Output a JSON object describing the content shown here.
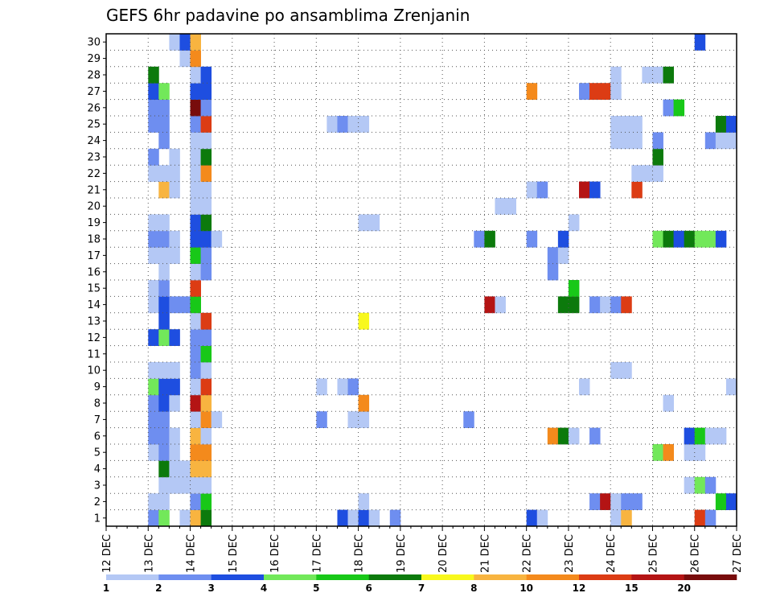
{
  "chart_data": {
    "type": "heatmap",
    "title": "GEFS 6hr padavine po ansamblima Zrenjanin",
    "xlabel": "",
    "ylabel": "",
    "x_tick_labels": [
      "12 DEC",
      "13 DEC",
      "14 DEC",
      "15 DEC",
      "16 DEC",
      "17 DEC",
      "18 DEC",
      "19 DEC",
      "20 DEC",
      "21 DEC",
      "22 DEC",
      "23 DEC",
      "24 DEC",
      "25 DEC",
      "26 DEC",
      "27 DEC"
    ],
    "y_tick_labels": [
      "1",
      "2",
      "3",
      "4",
      "5",
      "6",
      "7",
      "8",
      "9",
      "10",
      "11",
      "12",
      "13",
      "14",
      "15",
      "16",
      "17",
      "18",
      "19",
      "20",
      "21",
      "22",
      "23",
      "24",
      "25",
      "26",
      "27",
      "28",
      "29",
      "30"
    ],
    "x_unit_note": "x = days after 12 DEC 00Z, 6-hour steps",
    "xlim": [
      0,
      15
    ],
    "ylim": [
      0,
      30
    ],
    "grid": true,
    "legend_placement": "bottom",
    "legend": {
      "labels": [
        "1",
        "2",
        "3",
        "4",
        "5",
        "6",
        "7",
        "8",
        "10",
        "12",
        "15",
        "20"
      ],
      "colors": [
        "#b4c8f5",
        "#6e8ef0",
        "#1e4ee0",
        "#72e85a",
        "#18c818",
        "#0c7a0c",
        "#f8f81c",
        "#f8b440",
        "#f48a1c",
        "#dc3c14",
        "#b41414",
        "#780c0c"
      ]
    },
    "cells": [
      [
        1.0,
        1,
        2
      ],
      [
        1.0,
        2,
        1
      ],
      [
        1.0,
        5,
        1
      ],
      [
        1.0,
        6,
        2
      ],
      [
        1.0,
        7,
        2
      ],
      [
        1.0,
        8,
        2
      ],
      [
        1.0,
        9,
        4
      ],
      [
        1.0,
        10,
        1
      ],
      [
        1.0,
        12,
        3
      ],
      [
        1.0,
        14,
        1
      ],
      [
        1.0,
        15,
        1
      ],
      [
        1.0,
        17,
        1
      ],
      [
        1.0,
        18,
        2
      ],
      [
        1.0,
        19,
        1
      ],
      [
        1.0,
        22,
        1
      ],
      [
        1.0,
        23,
        2
      ],
      [
        1.0,
        25,
        2
      ],
      [
        1.0,
        26,
        2
      ],
      [
        1.0,
        27,
        3
      ],
      [
        1.0,
        28,
        6
      ],
      [
        1.25,
        1,
        4
      ],
      [
        1.25,
        2,
        1
      ],
      [
        1.25,
        3,
        1
      ],
      [
        1.25,
        4,
        6
      ],
      [
        1.25,
        5,
        2
      ],
      [
        1.25,
        6,
        2
      ],
      [
        1.25,
        7,
        2
      ],
      [
        1.25,
        8,
        3
      ],
      [
        1.25,
        9,
        3
      ],
      [
        1.25,
        10,
        1
      ],
      [
        1.25,
        12,
        4
      ],
      [
        1.25,
        13,
        3
      ],
      [
        1.25,
        14,
        3
      ],
      [
        1.25,
        15,
        2
      ],
      [
        1.25,
        16,
        1
      ],
      [
        1.25,
        17,
        1
      ],
      [
        1.25,
        18,
        2
      ],
      [
        1.25,
        19,
        1
      ],
      [
        1.25,
        21,
        8
      ],
      [
        1.25,
        22,
        1
      ],
      [
        1.25,
        24,
        2
      ],
      [
        1.25,
        25,
        2
      ],
      [
        1.25,
        26,
        2
      ],
      [
        1.25,
        27,
        4
      ],
      [
        1.5,
        3,
        1
      ],
      [
        1.5,
        4,
        1
      ],
      [
        1.5,
        5,
        1
      ],
      [
        1.5,
        6,
        1
      ],
      [
        1.5,
        8,
        1
      ],
      [
        1.5,
        9,
        3
      ],
      [
        1.5,
        10,
        1
      ],
      [
        1.5,
        12,
        3
      ],
      [
        1.5,
        14,
        2
      ],
      [
        1.5,
        17,
        1
      ],
      [
        1.5,
        18,
        1
      ],
      [
        1.5,
        21,
        1
      ],
      [
        1.5,
        22,
        1
      ],
      [
        1.5,
        23,
        1
      ],
      [
        1.5,
        30,
        1
      ],
      [
        1.75,
        1,
        1
      ],
      [
        1.75,
        3,
        1
      ],
      [
        1.75,
        4,
        1
      ],
      [
        1.75,
        14,
        2
      ],
      [
        1.75,
        29,
        1
      ],
      [
        1.75,
        30,
        3
      ],
      [
        2.0,
        1,
        8
      ],
      [
        2.0,
        2,
        2
      ],
      [
        2.0,
        3,
        1
      ],
      [
        2.0,
        4,
        8
      ],
      [
        2.0,
        5,
        9
      ],
      [
        2.0,
        6,
        8
      ],
      [
        2.0,
        7,
        1
      ],
      [
        2.0,
        8,
        11
      ],
      [
        2.0,
        9,
        1
      ],
      [
        2.0,
        10,
        2
      ],
      [
        2.0,
        11,
        2
      ],
      [
        2.0,
        12,
        2
      ],
      [
        2.0,
        13,
        1
      ],
      [
        2.0,
        14,
        5
      ],
      [
        2.0,
        15,
        10
      ],
      [
        2.0,
        16,
        1
      ],
      [
        2.0,
        17,
        5
      ],
      [
        2.0,
        18,
        3
      ],
      [
        2.0,
        19,
        3
      ],
      [
        2.0,
        20,
        1
      ],
      [
        2.0,
        21,
        1
      ],
      [
        2.0,
        22,
        1
      ],
      [
        2.0,
        23,
        1
      ],
      [
        2.0,
        24,
        1
      ],
      [
        2.0,
        25,
        2
      ],
      [
        2.0,
        26,
        12
      ],
      [
        2.0,
        27,
        3
      ],
      [
        2.0,
        28,
        1
      ],
      [
        2.0,
        29,
        9
      ],
      [
        2.0,
        30,
        8
      ],
      [
        2.25,
        1,
        6
      ],
      [
        2.25,
        2,
        5
      ],
      [
        2.25,
        3,
        1
      ],
      [
        2.25,
        4,
        8
      ],
      [
        2.25,
        5,
        9
      ],
      [
        2.25,
        6,
        1
      ],
      [
        2.25,
        7,
        9
      ],
      [
        2.25,
        8,
        8
      ],
      [
        2.25,
        9,
        10
      ],
      [
        2.25,
        10,
        1
      ],
      [
        2.25,
        11,
        5
      ],
      [
        2.25,
        12,
        2
      ],
      [
        2.25,
        13,
        10
      ],
      [
        2.25,
        16,
        2
      ],
      [
        2.25,
        17,
        2
      ],
      [
        2.25,
        18,
        3
      ],
      [
        2.25,
        19,
        6
      ],
      [
        2.25,
        20,
        1
      ],
      [
        2.25,
        21,
        1
      ],
      [
        2.25,
        22,
        9
      ],
      [
        2.25,
        23,
        6
      ],
      [
        2.25,
        24,
        1
      ],
      [
        2.25,
        25,
        10
      ],
      [
        2.25,
        26,
        2
      ],
      [
        2.25,
        27,
        3
      ],
      [
        2.25,
        28,
        3
      ],
      [
        2.5,
        7,
        1
      ],
      [
        2.5,
        18,
        1
      ],
      [
        5.0,
        7,
        2
      ],
      [
        5.0,
        9,
        1
      ],
      [
        5.25,
        25,
        1
      ],
      [
        5.5,
        1,
        3
      ],
      [
        5.5,
        9,
        1
      ],
      [
        5.5,
        25,
        2
      ],
      [
        5.75,
        1,
        1
      ],
      [
        5.75,
        7,
        1
      ],
      [
        5.75,
        9,
        2
      ],
      [
        5.75,
        25,
        1
      ],
      [
        6.0,
        1,
        3
      ],
      [
        6.0,
        2,
        1
      ],
      [
        6.0,
        7,
        1
      ],
      [
        6.0,
        8,
        9
      ],
      [
        6.0,
        13,
        7
      ],
      [
        6.0,
        19,
        1
      ],
      [
        6.0,
        25,
        1
      ],
      [
        6.25,
        1,
        1
      ],
      [
        6.25,
        19,
        1
      ],
      [
        6.75,
        1,
        2
      ],
      [
        8.5,
        7,
        2
      ],
      [
        8.75,
        18,
        2
      ],
      [
        9.0,
        14,
        11
      ],
      [
        9.0,
        18,
        6
      ],
      [
        9.25,
        14,
        1
      ],
      [
        9.25,
        20,
        1
      ],
      [
        9.5,
        20,
        1
      ],
      [
        10.0,
        1,
        3
      ],
      [
        10.0,
        18,
        2
      ],
      [
        10.0,
        21,
        1
      ],
      [
        10.0,
        27,
        9
      ],
      [
        10.25,
        1,
        1
      ],
      [
        10.25,
        21,
        2
      ],
      [
        10.5,
        6,
        9
      ],
      [
        10.5,
        16,
        2
      ],
      [
        10.5,
        17,
        2
      ],
      [
        10.75,
        6,
        6
      ],
      [
        10.75,
        14,
        6
      ],
      [
        10.75,
        17,
        1
      ],
      [
        10.75,
        18,
        3
      ],
      [
        11.0,
        6,
        1
      ],
      [
        11.0,
        14,
        6
      ],
      [
        11.0,
        15,
        5
      ],
      [
        11.0,
        19,
        1
      ],
      [
        11.25,
        9,
        1
      ],
      [
        11.25,
        21,
        11
      ],
      [
        11.25,
        27,
        2
      ],
      [
        11.5,
        2,
        2
      ],
      [
        11.5,
        6,
        2
      ],
      [
        11.5,
        14,
        2
      ],
      [
        11.5,
        21,
        3
      ],
      [
        11.5,
        27,
        10
      ],
      [
        11.75,
        2,
        11
      ],
      [
        11.75,
        14,
        1
      ],
      [
        11.75,
        27,
        10
      ],
      [
        12.0,
        1,
        1
      ],
      [
        12.0,
        2,
        1
      ],
      [
        12.0,
        10,
        1
      ],
      [
        12.0,
        14,
        2
      ],
      [
        12.0,
        24,
        1
      ],
      [
        12.0,
        25,
        1
      ],
      [
        12.0,
        27,
        1
      ],
      [
        12.0,
        28,
        1
      ],
      [
        12.25,
        1,
        8
      ],
      [
        12.25,
        2,
        2
      ],
      [
        12.25,
        10,
        1
      ],
      [
        12.25,
        14,
        10
      ],
      [
        12.25,
        24,
        1
      ],
      [
        12.25,
        25,
        1
      ],
      [
        12.5,
        2,
        2
      ],
      [
        12.5,
        21,
        10
      ],
      [
        12.5,
        22,
        1
      ],
      [
        12.5,
        24,
        1
      ],
      [
        12.5,
        25,
        1
      ],
      [
        12.75,
        22,
        1
      ],
      [
        12.75,
        28,
        1
      ],
      [
        13.0,
        5,
        4
      ],
      [
        13.0,
        18,
        4
      ],
      [
        13.0,
        22,
        1
      ],
      [
        13.0,
        23,
        6
      ],
      [
        13.0,
        24,
        2
      ],
      [
        13.0,
        28,
        1
      ],
      [
        13.25,
        5,
        9
      ],
      [
        13.25,
        8,
        1
      ],
      [
        13.25,
        18,
        6
      ],
      [
        13.25,
        26,
        2
      ],
      [
        13.25,
        28,
        6
      ],
      [
        13.5,
        18,
        3
      ],
      [
        13.5,
        26,
        5
      ],
      [
        13.75,
        3,
        1
      ],
      [
        13.75,
        5,
        1
      ],
      [
        13.75,
        6,
        3
      ],
      [
        13.75,
        18,
        6
      ],
      [
        14.0,
        1,
        10
      ],
      [
        14.0,
        3,
        4
      ],
      [
        14.0,
        5,
        1
      ],
      [
        14.0,
        6,
        5
      ],
      [
        14.0,
        18,
        4
      ],
      [
        14.0,
        30,
        3
      ],
      [
        14.25,
        1,
        2
      ],
      [
        14.25,
        3,
        2
      ],
      [
        14.25,
        6,
        1
      ],
      [
        14.25,
        18,
        4
      ],
      [
        14.25,
        24,
        2
      ],
      [
        14.5,
        2,
        5
      ],
      [
        14.5,
        6,
        1
      ],
      [
        14.5,
        18,
        3
      ],
      [
        14.5,
        24,
        1
      ],
      [
        14.5,
        25,
        6
      ],
      [
        14.75,
        2,
        3
      ],
      [
        14.75,
        9,
        1
      ],
      [
        14.75,
        24,
        1
      ],
      [
        14.75,
        25,
        3
      ]
    ]
  }
}
